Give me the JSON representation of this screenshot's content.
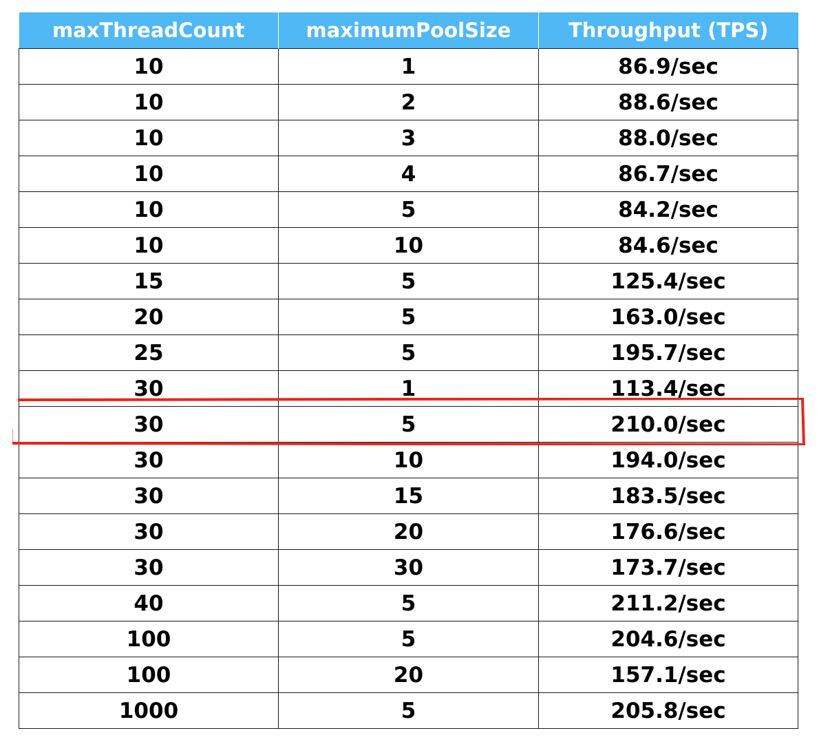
{
  "chart_data": {
    "type": "table",
    "columns": [
      "maxThreadCount",
      "maximumPoolSize",
      "Throughput (TPS)"
    ],
    "rows": [
      [
        "10",
        "1",
        "86.9/sec"
      ],
      [
        "10",
        "2",
        "88.6/sec"
      ],
      [
        "10",
        "3",
        "88.0/sec"
      ],
      [
        "10",
        "4",
        "86.7/sec"
      ],
      [
        "10",
        "5",
        "84.2/sec"
      ],
      [
        "10",
        "10",
        "84.6/sec"
      ],
      [
        "15",
        "5",
        "125.4/sec"
      ],
      [
        "20",
        "5",
        "163.0/sec"
      ],
      [
        "25",
        "5",
        "195.7/sec"
      ],
      [
        "30",
        "1",
        "113.4/sec"
      ],
      [
        "30",
        "5",
        "210.0/sec"
      ],
      [
        "30",
        "10",
        "194.0/sec"
      ],
      [
        "30",
        "15",
        "183.5/sec"
      ],
      [
        "30",
        "20",
        "176.6/sec"
      ],
      [
        "30",
        "30",
        "173.7/sec"
      ],
      [
        "40",
        "5",
        "211.2/sec"
      ],
      [
        "100",
        "5",
        "204.6/sec"
      ],
      [
        "100",
        "20",
        "157.1/sec"
      ],
      [
        "1000",
        "5",
        "205.8/sec"
      ]
    ],
    "highlighted_row_index": 10
  },
  "colors": {
    "header_background": "#4fb8f5",
    "header_text": "#ffffff",
    "highlight_stroke": "#e8261b"
  }
}
